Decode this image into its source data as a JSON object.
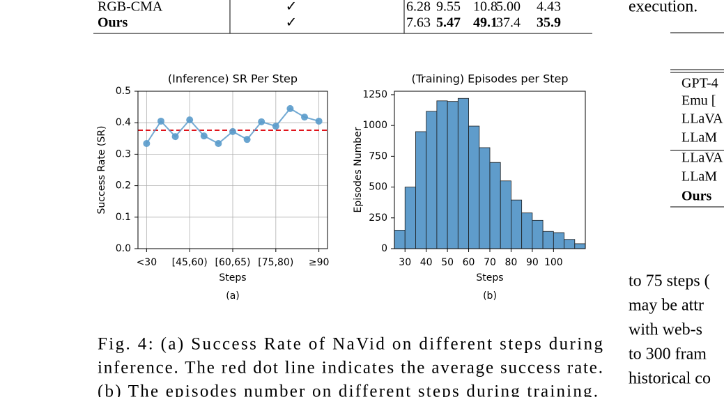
{
  "top_table": {
    "rows": [
      [
        "RGB-CMA",
        "✓",
        "6.28",
        "9.55",
        "10.8",
        "5.00",
        "4.43"
      ],
      [
        "Ours",
        "✓",
        "7.63",
        "5.47",
        "49.1",
        "37.4",
        "35.9"
      ]
    ]
  },
  "right_column": {
    "top_text": "execution.",
    "table_rows": [
      "GPT-4",
      "Emu [",
      "LLaVA",
      "LLaM",
      "LLaVA",
      "LLaM",
      "Ours"
    ],
    "text_lines": [
      "to 75 steps (",
      "may be attr",
      "with web-s",
      "to 300 fram",
      "historical co"
    ]
  },
  "chart_data": [
    {
      "type": "line",
      "title": "(Inference) SR Per Step",
      "x_label": "Steps",
      "y_label": "Success Rate (SR)",
      "panel_label": "(a)",
      "categories": [
        "<30",
        null,
        null,
        "[45,60)",
        null,
        null,
        "[60,65)",
        null,
        null,
        "[75,80)",
        null,
        null,
        "≥90"
      ],
      "values": [
        0.334,
        0.405,
        0.356,
        0.409,
        0.358,
        0.334,
        0.372,
        0.347,
        0.403,
        0.389,
        0.445,
        0.418,
        0.405
      ],
      "color": "#5a9bcb",
      "hline": {
        "value": 0.376,
        "color": "#e0141b"
      },
      "ylim": [
        0,
        0.5
      ],
      "yticks": [
        {
          "value": 0,
          "label": "0.0"
        },
        0.1,
        0.2,
        0.3,
        0.4,
        0.5
      ],
      "grid": true
    },
    {
      "type": "histogram",
      "title": "(Training) Episodes per Step",
      "x_label": "Steps",
      "y_label": "Episodes Number",
      "panel_label": "(b)",
      "bins": [
        25,
        30,
        35,
        40,
        45,
        50,
        55,
        60,
        65,
        70,
        75,
        80,
        85,
        90,
        95,
        100,
        105,
        110,
        115
      ],
      "counts": [
        150,
        500,
        950,
        1115,
        1200,
        1195,
        1220,
        995,
        820,
        700,
        550,
        395,
        290,
        230,
        140,
        130,
        75,
        40
      ],
      "color": "#5f9ccb",
      "xlim": [
        25,
        115
      ],
      "xticks": [
        30,
        40,
        50,
        60,
        70,
        80,
        90,
        100
      ],
      "ylim": [
        0,
        1278
      ],
      "yticks": [
        0,
        250,
        500,
        750,
        1000,
        1250
      ],
      "grid": false
    }
  ],
  "caption": {
    "lines": [
      "Fig. 4: (a) Success Rate of NaVid on different steps during",
      "inference. The red dot line indicates the average success rate.",
      "(b) The episodes number on different steps during training."
    ]
  }
}
